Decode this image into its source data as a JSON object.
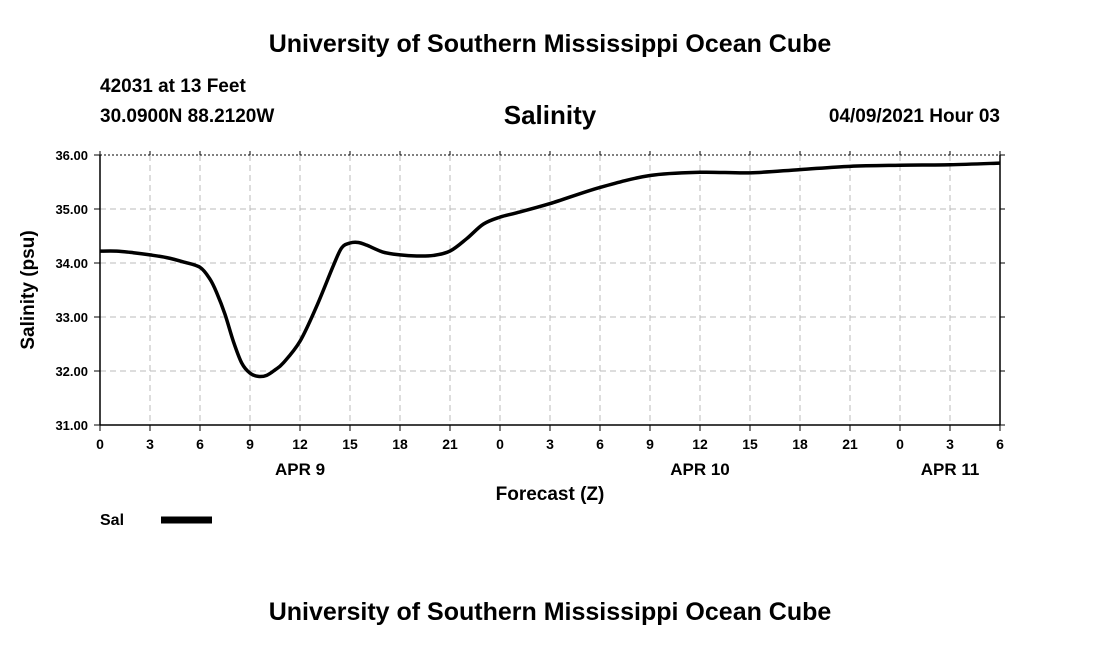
{
  "header": {
    "title": "University of Southern Mississippi Ocean Cube",
    "station": "42031 at 13 Feet",
    "coords": "30.0900N  88.2120W",
    "subtitle": "Salinity",
    "datetime": "04/09/2021 Hour 03"
  },
  "footer": {
    "title": "University of Southern Mississippi Ocean Cube"
  },
  "chart_data": {
    "type": "line",
    "title": "Salinity",
    "xlabel": "Forecast (Z)",
    "ylabel": "Salinity (psu)",
    "xlim": [
      0,
      54
    ],
    "ylim": [
      31.0,
      36.0
    ],
    "x_tick_values": [
      0,
      3,
      6,
      9,
      12,
      15,
      18,
      21,
      24,
      27,
      30,
      33,
      36,
      39,
      42,
      45,
      48,
      51,
      54
    ],
    "x_tick_labels": [
      "0",
      "3",
      "6",
      "9",
      "12",
      "15",
      "18",
      "21",
      "0",
      "3",
      "6",
      "9",
      "12",
      "15",
      "18",
      "21",
      "0",
      "3",
      "6"
    ],
    "y_tick_values": [
      31,
      32,
      33,
      34,
      35,
      36
    ],
    "y_tick_labels": [
      "31.00",
      "32.00",
      "33.00",
      "34.00",
      "35.00",
      "36.00"
    ],
    "date_labels": [
      {
        "x": 12,
        "label": "APR 9"
      },
      {
        "x": 36,
        "label": "APR 10"
      },
      {
        "x": 51,
        "label": "APR 11"
      }
    ],
    "grid": true,
    "legend": {
      "position": "bottom-left",
      "entries": [
        "Sal"
      ]
    },
    "series": [
      {
        "name": "Sal",
        "color": "#000000",
        "x": [
          0,
          1,
          2,
          3,
          4,
          5,
          6,
          6.6,
          7,
          7.5,
          8,
          8.5,
          9,
          9.5,
          10,
          10.5,
          11,
          12,
          13,
          14,
          14.5,
          15,
          15.5,
          16,
          17,
          18,
          19,
          20,
          21,
          22,
          23,
          24,
          25,
          27,
          30,
          33,
          36,
          39,
          42,
          45,
          48,
          51,
          54
        ],
        "values": [
          34.22,
          34.22,
          34.19,
          34.15,
          34.1,
          34.02,
          33.92,
          33.7,
          33.45,
          33.05,
          32.55,
          32.15,
          31.96,
          31.9,
          31.92,
          32.02,
          32.15,
          32.55,
          33.2,
          33.95,
          34.28,
          34.37,
          34.38,
          34.33,
          34.2,
          34.15,
          34.13,
          34.14,
          34.22,
          34.45,
          34.72,
          34.85,
          34.93,
          35.1,
          35.4,
          35.62,
          35.68,
          35.67,
          35.73,
          35.79,
          35.81,
          35.82,
          35.85
        ]
      }
    ]
  }
}
